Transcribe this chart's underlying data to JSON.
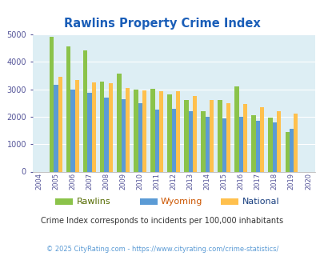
{
  "title": "Rawlins Property Crime Index",
  "years": [
    2004,
    2005,
    2006,
    2007,
    2008,
    2009,
    2010,
    2011,
    2012,
    2013,
    2014,
    2015,
    2016,
    2017,
    2018,
    2019,
    2020
  ],
  "rawlins": [
    null,
    4900,
    4570,
    4420,
    3280,
    3560,
    3000,
    3010,
    2820,
    2600,
    2200,
    2620,
    3100,
    2050,
    1970,
    1440,
    null
  ],
  "wyoming": [
    null,
    3150,
    3000,
    2870,
    2700,
    2640,
    2480,
    2250,
    2280,
    2190,
    2000,
    1930,
    1990,
    1850,
    1790,
    1570,
    null
  ],
  "national": [
    null,
    3440,
    3340,
    3250,
    3210,
    3050,
    2960,
    2930,
    2920,
    2740,
    2600,
    2490,
    2460,
    2360,
    2190,
    2120,
    null
  ],
  "rawlins_color": "#8bc34a",
  "wyoming_color": "#5b9bd5",
  "national_color": "#ffc04d",
  "plot_bg": "#ddeef4",
  "ylim": [
    0,
    5000
  ],
  "yticks": [
    0,
    1000,
    2000,
    3000,
    4000,
    5000
  ],
  "legend_labels": [
    "Rawlins",
    "Wyoming",
    "National"
  ],
  "legend_label_colors": [
    "#7ab030",
    "#cc6600",
    "#4472c4"
  ],
  "subtitle": "Crime Index corresponds to incidents per 100,000 inhabitants",
  "footer": "© 2025 CityRating.com - https://www.cityrating.com/crime-statistics/",
  "title_color": "#1a5eb8",
  "subtitle_color": "#333333",
  "footer_color": "#5b9bd5"
}
